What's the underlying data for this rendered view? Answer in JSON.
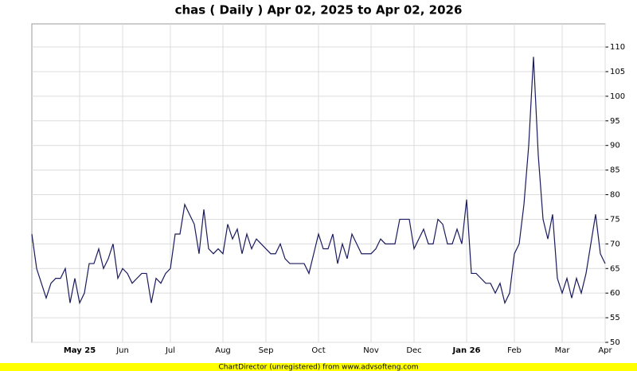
{
  "chart_data": {
    "type": "line",
    "title": "chas ( Daily ) Apr 02, 2025 to Apr 02, 2026",
    "footer": "ChartDirector (unregistered) from www.advsofteng.com",
    "categories": [
      null,
      null,
      null,
      null,
      null,
      null,
      null,
      null,
      null,
      null,
      "May 25",
      null,
      null,
      null,
      null,
      null,
      null,
      null,
      null,
      "Jun",
      null,
      null,
      null,
      null,
      null,
      null,
      null,
      null,
      null,
      "Jul",
      null,
      null,
      null,
      null,
      null,
      null,
      null,
      null,
      null,
      null,
      "Aug",
      null,
      null,
      null,
      null,
      null,
      null,
      null,
      null,
      "Sep",
      null,
      null,
      null,
      null,
      null,
      null,
      null,
      null,
      null,
      null,
      "Oct",
      null,
      null,
      null,
      null,
      null,
      null,
      null,
      null,
      null,
      null,
      "Nov",
      null,
      null,
      null,
      null,
      null,
      null,
      null,
      null,
      "Dec",
      null,
      null,
      null,
      null,
      null,
      null,
      null,
      null,
      null,
      null,
      "Jan 26",
      null,
      null,
      null,
      null,
      null,
      null,
      null,
      null,
      null,
      "Feb",
      null,
      null,
      null,
      null,
      null,
      null,
      null,
      null,
      null,
      "Mar",
      null,
      null,
      null,
      null,
      null,
      null,
      null,
      null,
      "Apr"
    ],
    "series": [
      {
        "color": "#1a1a5e",
        "values": [
          72,
          65,
          62,
          59,
          62,
          63,
          63,
          65,
          58,
          63,
          58,
          60,
          66,
          66,
          69,
          65,
          67,
          70,
          63,
          65,
          64,
          62,
          63,
          64,
          64,
          58,
          63,
          62,
          64,
          65,
          72,
          72,
          78,
          76,
          74,
          68,
          77,
          69,
          68,
          69,
          68,
          74,
          71,
          73,
          68,
          72,
          69,
          71,
          70,
          69,
          68,
          68,
          70,
          67,
          66,
          66,
          66,
          66,
          64,
          68,
          72,
          69,
          69,
          72,
          66,
          70,
          67,
          72,
          70,
          68,
          68,
          68,
          69,
          71,
          70,
          70,
          70,
          75,
          75,
          75,
          69,
          71,
          73,
          70,
          70,
          75,
          74,
          70,
          70,
          73,
          70,
          79,
          64,
          64,
          63,
          62,
          62,
          60,
          62,
          58,
          60,
          68,
          70,
          78,
          90,
          108,
          88,
          75,
          71,
          76,
          63,
          60,
          63,
          59,
          63,
          60,
          64,
          70,
          76,
          68,
          66
        ]
      }
    ],
    "ylim": [
      50,
      114.7
    ],
    "yticks": [
      50,
      55,
      60,
      65,
      70,
      75,
      80,
      85,
      90,
      95,
      100,
      105,
      110
    ],
    "grid": true
  }
}
